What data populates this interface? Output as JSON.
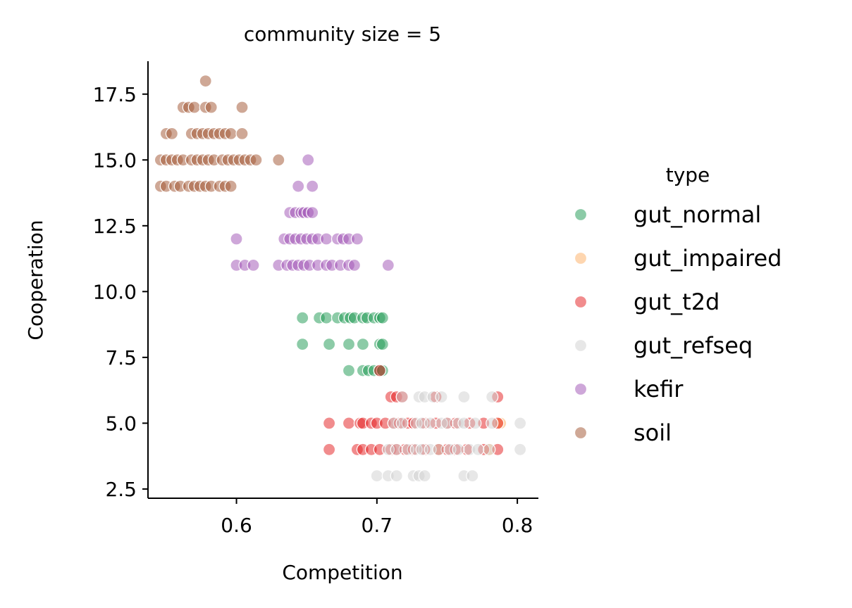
{
  "chart_data": {
    "type": "scatter",
    "title": "community size = 5",
    "xlabel": "Competition",
    "ylabel": "Cooperation",
    "xlim": [
      0.537,
      0.815
    ],
    "ylim": [
      2.15,
      18.75
    ],
    "xticks": [
      0.6,
      0.7,
      0.8
    ],
    "xtick_labels": [
      "0.6",
      "0.7",
      "0.8"
    ],
    "yticks": [
      2.5,
      5.0,
      7.5,
      10.0,
      12.5,
      15.0,
      17.5
    ],
    "ytick_labels": [
      "2.5",
      "5.0",
      "7.5",
      "10.0",
      "12.5",
      "15.0",
      "17.5"
    ],
    "grid": false,
    "legend": {
      "title": "type",
      "position": "right"
    },
    "series": [
      {
        "name": "gut_normal",
        "color": "#1a9850",
        "points": [
          [
            0.647,
            9
          ],
          [
            0.659,
            9
          ],
          [
            0.664,
            9
          ],
          [
            0.672,
            9
          ],
          [
            0.677,
            9
          ],
          [
            0.681,
            9
          ],
          [
            0.684,
            9
          ],
          [
            0.69,
            9
          ],
          [
            0.693,
            9
          ],
          [
            0.698,
            9
          ],
          [
            0.702,
            9
          ],
          [
            0.704,
            9
          ],
          [
            0.647,
            8
          ],
          [
            0.666,
            8
          ],
          [
            0.68,
            8
          ],
          [
            0.69,
            8
          ],
          [
            0.702,
            8
          ],
          [
            0.704,
            8
          ],
          [
            0.68,
            7
          ],
          [
            0.69,
            7
          ],
          [
            0.694,
            7
          ],
          [
            0.698,
            7
          ],
          [
            0.702,
            7
          ],
          [
            0.704,
            7
          ]
        ]
      },
      {
        "name": "gut_impaired",
        "color": "#fdae61",
        "points": [
          [
            0.786,
            5
          ],
          [
            0.788,
            5
          ],
          [
            0.744,
            4
          ],
          [
            0.78,
            4
          ]
        ]
      },
      {
        "name": "gut_t2d",
        "color": "#e31a1c",
        "points": [
          [
            0.702,
            7
          ],
          [
            0.71,
            6
          ],
          [
            0.714,
            6
          ],
          [
            0.718,
            6
          ],
          [
            0.742,
            6
          ],
          [
            0.786,
            6
          ],
          [
            0.666,
            5
          ],
          [
            0.68,
            5
          ],
          [
            0.688,
            5
          ],
          [
            0.69,
            5
          ],
          [
            0.696,
            5
          ],
          [
            0.7,
            5
          ],
          [
            0.706,
            5
          ],
          [
            0.712,
            5
          ],
          [
            0.716,
            5
          ],
          [
            0.722,
            5
          ],
          [
            0.726,
            5
          ],
          [
            0.734,
            5
          ],
          [
            0.742,
            5
          ],
          [
            0.75,
            5
          ],
          [
            0.756,
            5
          ],
          [
            0.766,
            5
          ],
          [
            0.776,
            5
          ],
          [
            0.786,
            5
          ],
          [
            0.666,
            4
          ],
          [
            0.686,
            4
          ],
          [
            0.69,
            4
          ],
          [
            0.696,
            4
          ],
          [
            0.702,
            4
          ],
          [
            0.71,
            4
          ],
          [
            0.714,
            4
          ],
          [
            0.72,
            4
          ],
          [
            0.726,
            4
          ],
          [
            0.734,
            4
          ],
          [
            0.744,
            4
          ],
          [
            0.75,
            4
          ],
          [
            0.756,
            4
          ],
          [
            0.764,
            4
          ],
          [
            0.776,
            4
          ],
          [
            0.786,
            4
          ]
        ]
      },
      {
        "name": "gut_refseq",
        "color": "#d0d0d0",
        "points": [
          [
            0.718,
            6
          ],
          [
            0.73,
            6
          ],
          [
            0.734,
            6
          ],
          [
            0.74,
            6
          ],
          [
            0.746,
            6
          ],
          [
            0.762,
            6
          ],
          [
            0.782,
            6
          ],
          [
            0.712,
            5
          ],
          [
            0.718,
            5
          ],
          [
            0.728,
            5
          ],
          [
            0.732,
            5
          ],
          [
            0.738,
            5
          ],
          [
            0.746,
            5
          ],
          [
            0.75,
            5
          ],
          [
            0.758,
            5
          ],
          [
            0.762,
            5
          ],
          [
            0.77,
            5
          ],
          [
            0.782,
            5
          ],
          [
            0.802,
            5
          ],
          [
            0.708,
            4
          ],
          [
            0.714,
            4
          ],
          [
            0.722,
            4
          ],
          [
            0.728,
            4
          ],
          [
            0.732,
            4
          ],
          [
            0.738,
            4
          ],
          [
            0.744,
            4
          ],
          [
            0.752,
            4
          ],
          [
            0.758,
            4
          ],
          [
            0.766,
            4
          ],
          [
            0.772,
            4
          ],
          [
            0.78,
            4
          ],
          [
            0.802,
            4
          ],
          [
            0.7,
            3
          ],
          [
            0.708,
            3
          ],
          [
            0.714,
            3
          ],
          [
            0.726,
            3
          ],
          [
            0.73,
            3
          ],
          [
            0.734,
            3
          ],
          [
            0.762,
            3
          ],
          [
            0.768,
            3
          ]
        ]
      },
      {
        "name": "kefir",
        "color": "#9e4fb3",
        "points": [
          [
            0.651,
            15
          ],
          [
            0.644,
            14
          ],
          [
            0.654,
            14
          ],
          [
            0.638,
            13
          ],
          [
            0.642,
            13
          ],
          [
            0.646,
            13
          ],
          [
            0.648,
            13
          ],
          [
            0.651,
            13
          ],
          [
            0.654,
            13
          ],
          [
            0.6,
            12
          ],
          [
            0.634,
            12
          ],
          [
            0.638,
            12
          ],
          [
            0.642,
            12
          ],
          [
            0.646,
            12
          ],
          [
            0.65,
            12
          ],
          [
            0.654,
            12
          ],
          [
            0.658,
            12
          ],
          [
            0.664,
            12
          ],
          [
            0.672,
            12
          ],
          [
            0.676,
            12
          ],
          [
            0.68,
            12
          ],
          [
            0.686,
            12
          ],
          [
            0.6,
            11
          ],
          [
            0.606,
            11
          ],
          [
            0.612,
            11
          ],
          [
            0.63,
            11
          ],
          [
            0.636,
            11
          ],
          [
            0.64,
            11
          ],
          [
            0.644,
            11
          ],
          [
            0.648,
            11
          ],
          [
            0.652,
            11
          ],
          [
            0.658,
            11
          ],
          [
            0.664,
            11
          ],
          [
            0.668,
            11
          ],
          [
            0.674,
            11
          ],
          [
            0.68,
            11
          ],
          [
            0.684,
            11
          ],
          [
            0.708,
            11
          ]
        ]
      },
      {
        "name": "soil",
        "color": "#a0522d",
        "points": [
          [
            0.578,
            18
          ],
          [
            0.562,
            17
          ],
          [
            0.566,
            17
          ],
          [
            0.57,
            17
          ],
          [
            0.578,
            17
          ],
          [
            0.582,
            17
          ],
          [
            0.604,
            17
          ],
          [
            0.55,
            16
          ],
          [
            0.554,
            16
          ],
          [
            0.568,
            16
          ],
          [
            0.572,
            16
          ],
          [
            0.576,
            16
          ],
          [
            0.58,
            16
          ],
          [
            0.584,
            16
          ],
          [
            0.588,
            16
          ],
          [
            0.592,
            16
          ],
          [
            0.596,
            16
          ],
          [
            0.604,
            16
          ],
          [
            0.546,
            15
          ],
          [
            0.55,
            15
          ],
          [
            0.554,
            15
          ],
          [
            0.558,
            15
          ],
          [
            0.562,
            15
          ],
          [
            0.568,
            15
          ],
          [
            0.572,
            15
          ],
          [
            0.576,
            15
          ],
          [
            0.58,
            15
          ],
          [
            0.584,
            15
          ],
          [
            0.59,
            15
          ],
          [
            0.594,
            15
          ],
          [
            0.598,
            15
          ],
          [
            0.602,
            15
          ],
          [
            0.606,
            15
          ],
          [
            0.61,
            15
          ],
          [
            0.614,
            15
          ],
          [
            0.63,
            15
          ],
          [
            0.546,
            14
          ],
          [
            0.55,
            14
          ],
          [
            0.556,
            14
          ],
          [
            0.56,
            14
          ],
          [
            0.566,
            14
          ],
          [
            0.57,
            14
          ],
          [
            0.574,
            14
          ],
          [
            0.578,
            14
          ],
          [
            0.582,
            14
          ],
          [
            0.588,
            14
          ],
          [
            0.592,
            14
          ],
          [
            0.596,
            14
          ]
        ]
      }
    ]
  }
}
